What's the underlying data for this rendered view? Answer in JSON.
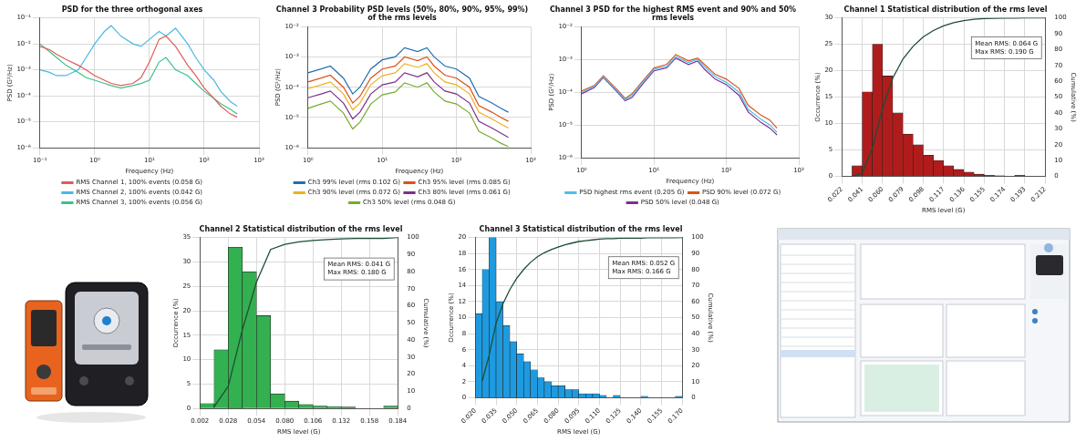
{
  "chart_data": [
    {
      "type": "line",
      "title": "PSD for the three orthogonal axes",
      "x_label": "Frequency (Hz)",
      "y_label": "PSD (G²/Hz)",
      "log": true,
      "grid": true,
      "legend": "bottom",
      "xlim": [
        0.1,
        1000
      ],
      "ylim": [
        1e-06,
        0.1
      ],
      "xticks": [
        {
          "value": 0.1,
          "label": "10⁻¹"
        },
        {
          "value": 1,
          "label": "10⁰"
        },
        {
          "value": 10,
          "label": "10¹"
        },
        {
          "value": 100,
          "label": "10²"
        },
        {
          "value": 1000,
          "label": "10³"
        }
      ],
      "yticks": [
        {
          "value": 1e-06,
          "label": "10⁻⁶"
        },
        {
          "value": 1e-05,
          "label": "10⁻⁵"
        },
        {
          "value": 0.0001,
          "label": "10⁻⁴"
        },
        {
          "value": 0.001,
          "label": "10⁻³"
        },
        {
          "value": 0.01,
          "label": "10⁻²"
        },
        {
          "value": 0.1,
          "label": "10⁻¹"
        }
      ],
      "x": [
        0.1,
        0.15,
        0.2,
        0.3,
        0.5,
        0.7,
        1,
        1.5,
        2,
        3,
        5,
        7,
        10,
        15,
        20,
        30,
        50,
        70,
        100,
        150,
        200,
        300,
        400
      ],
      "series": [
        {
          "name": "RMS Channel 1, 100% events (0.058 G)",
          "color": "#e05a5a",
          "values": [
            0.008,
            0.006,
            0.004,
            0.0025,
            0.0015,
            0.001,
            0.0006,
            0.0004,
            0.0003,
            0.00025,
            0.0003,
            0.0005,
            0.002,
            0.015,
            0.02,
            0.008,
            0.0015,
            0.0006,
            0.0002,
            8e-05,
            4e-05,
            2e-05,
            1.5e-05
          ]
        },
        {
          "name": "RMS Channel 2, 100% events (0.042 G)",
          "color": "#4ab8e8",
          "values": [
            0.001,
            0.0008,
            0.0006,
            0.0006,
            0.001,
            0.003,
            0.01,
            0.03,
            0.05,
            0.02,
            0.01,
            0.008,
            0.015,
            0.03,
            0.02,
            0.04,
            0.01,
            0.003,
            0.001,
            0.0004,
            0.00015,
            6e-05,
            4e-05
          ]
        },
        {
          "name": "RMS Channel 3, 100% events (0.056 G)",
          "color": "#3cc08a",
          "values": [
            0.01,
            0.005,
            0.003,
            0.0015,
            0.0008,
            0.0005,
            0.0004,
            0.0003,
            0.00025,
            0.0002,
            0.00025,
            0.0003,
            0.0004,
            0.002,
            0.003,
            0.001,
            0.0006,
            0.0003,
            0.00015,
            8e-05,
            5e-05,
            3e-05,
            2e-05
          ]
        }
      ]
    },
    {
      "type": "line",
      "title": "Channel 3 Probability PSD levels (50%, 80%, 90%, 95%, 99%) of the rms levels",
      "x_label": "Frequency (Hz)",
      "y_label": "PSD (G²/Hz)",
      "log": true,
      "grid": true,
      "legend": "bottom",
      "xlim": [
        1,
        1000
      ],
      "ylim": [
        1e-06,
        0.01
      ],
      "xticks": [
        {
          "value": 1,
          "label": "10⁰"
        },
        {
          "value": 10,
          "label": "10¹"
        },
        {
          "value": 100,
          "label": "10²"
        },
        {
          "value": 1000,
          "label": "10³"
        }
      ],
      "yticks": [
        {
          "value": 1e-06,
          "label": "10⁻⁶"
        },
        {
          "value": 1e-05,
          "label": "10⁻⁵"
        },
        {
          "value": 0.0001,
          "label": "10⁻⁴"
        },
        {
          "value": 0.001,
          "label": "10⁻³"
        },
        {
          "value": 0.01,
          "label": "10⁻²"
        }
      ],
      "x": [
        1,
        1.5,
        2,
        3,
        4,
        5,
        7,
        10,
        15,
        20,
        30,
        40,
        50,
        70,
        100,
        150,
        200,
        300,
        400,
        500
      ],
      "series": [
        {
          "name": "Ch3 99% level (rms 0.102 G)",
          "color": "#1f6fb5",
          "values": [
            0.0003,
            0.0004,
            0.0005,
            0.0002,
            6e-05,
            0.0001,
            0.0004,
            0.0008,
            0.001,
            0.002,
            0.0015,
            0.002,
            0.001,
            0.0005,
            0.0004,
            0.0002,
            5e-05,
            3e-05,
            2e-05,
            1.5e-05
          ]
        },
        {
          "name": "Ch3 95% level (rms 0.085 G)",
          "color": "#d95319",
          "values": [
            0.00015,
            0.0002,
            0.00025,
            0.0001,
            3e-05,
            5e-05,
            0.0002,
            0.0004,
            0.0005,
            0.001,
            0.00075,
            0.001,
            0.0005,
            0.00025,
            0.0002,
            0.0001,
            2.5e-05,
            1.5e-05,
            1e-05,
            7.5e-06
          ]
        },
        {
          "name": "Ch3 90% level (rms 0.072 G)",
          "color": "#edb120",
          "values": [
            9e-05,
            0.00012,
            0.00015,
            6e-05,
            1.8e-05,
            3e-05,
            0.00012,
            0.00024,
            0.0003,
            0.0006,
            0.00045,
            0.0006,
            0.0003,
            0.00015,
            0.00012,
            6e-05,
            1.5e-05,
            9e-06,
            6e-06,
            4.5e-06
          ]
        },
        {
          "name": "Ch3 80% level (rms 0.061 G)",
          "color": "#7e2f8e",
          "values": [
            4.5e-05,
            6e-05,
            7.5e-05,
            3e-05,
            9e-06,
            1.5e-05,
            6e-05,
            0.00012,
            0.00015,
            0.0003,
            0.00022,
            0.0003,
            0.00015,
            7.5e-05,
            6e-05,
            3e-05,
            7.5e-06,
            4.5e-06,
            3e-06,
            2.2e-06
          ]
        },
        {
          "name": "Ch3 50% level (rms 0.048 G)",
          "color": "#77ac30",
          "values": [
            2e-05,
            2.8e-05,
            3.5e-05,
            1.4e-05,
            4.2e-06,
            7e-06,
            2.8e-05,
            5.6e-05,
            7e-05,
            0.00014,
            0.0001,
            0.00014,
            7e-05,
            3.5e-05,
            2.8e-05,
            1.4e-05,
            3.5e-06,
            2.1e-06,
            1.4e-06,
            1.1e-06
          ]
        }
      ]
    },
    {
      "type": "line",
      "title": "Channel 3 PSD for the highest RMS event and 90% and 50% rms levels",
      "x_label": "Frequency (Hz)",
      "y_label": "PSD (G²/Hz)",
      "log": true,
      "grid": true,
      "legend": "bottom",
      "xlim": [
        1,
        1000
      ],
      "ylim": [
        1e-06,
        0.01
      ],
      "xticks": [
        {
          "value": 1,
          "label": "10⁰"
        },
        {
          "value": 10,
          "label": "10¹"
        },
        {
          "value": 100,
          "label": "10²"
        },
        {
          "value": 1000,
          "label": "10³"
        }
      ],
      "yticks": [
        {
          "value": 1e-06,
          "label": "10⁻⁶"
        },
        {
          "value": 1e-05,
          "label": "10⁻⁵"
        },
        {
          "value": 0.0001,
          "label": "10⁻⁴"
        },
        {
          "value": 0.001,
          "label": "10⁻³"
        },
        {
          "value": 0.01,
          "label": "10⁻²"
        }
      ],
      "x": [
        1,
        1.5,
        2,
        3,
        4,
        5,
        7,
        10,
        15,
        20,
        30,
        40,
        50,
        70,
        100,
        150,
        200,
        300,
        400,
        500
      ],
      "series": [
        {
          "name": "PSD highest rms event (0.205 G)",
          "color": "#4dbeee",
          "values": [
            0.0001,
            0.00015,
            0.0003,
            0.00012,
            6e-05,
            8e-05,
            0.0002,
            0.0005,
            0.0006,
            0.0012,
            0.0008,
            0.001,
            0.0006,
            0.0003,
            0.0002,
            0.0001,
            3e-05,
            1.5e-05,
            1e-05,
            6e-06
          ]
        },
        {
          "name": "PSD 90% level (0.072 G)",
          "color": "#d95319",
          "values": [
            0.00011,
            0.00016,
            0.00032,
            0.00013,
            6.5e-05,
            9e-05,
            0.00022,
            0.00055,
            0.0007,
            0.0014,
            0.0009,
            0.0011,
            0.0007,
            0.00035,
            0.00025,
            0.00013,
            4e-05,
            2e-05,
            1.4e-05,
            8e-06
          ]
        },
        {
          "name": "PSD 50% level (0.048 G)",
          "color": "#7e2f8e",
          "values": [
            9e-05,
            0.00014,
            0.00028,
            0.00011,
            5.5e-05,
            7e-05,
            0.00018,
            0.00045,
            0.00055,
            0.0011,
            0.0007,
            0.0009,
            0.0005,
            0.00025,
            0.00017,
            8e-05,
            2.5e-05,
            1.2e-05,
            8e-06,
            5e-06
          ]
        }
      ]
    },
    {
      "type": "histogram",
      "title": "Channel 1 Statistical distribution of the rms level",
      "x_label": "RMS level (G)",
      "y_label": "Occurrence (%)",
      "y2_label": "Cumulative (%)",
      "grid": true,
      "xlim": [
        0.022,
        0.212
      ],
      "ylim": [
        0,
        30
      ],
      "y2lim": [
        0,
        100
      ],
      "xticks": [
        0.022,
        0.041,
        {
          "value": 0.06,
          "label": "0.060"
        },
        0.079,
        0.098,
        0.117,
        0.136,
        0.155,
        0.174,
        0.193,
        0.212
      ],
      "yticks": [
        0,
        5,
        10,
        15,
        20,
        25,
        30
      ],
      "y2ticks": [
        0,
        10,
        20,
        30,
        40,
        50,
        60,
        70,
        80,
        90,
        100
      ],
      "bins": [
        0.022,
        0.0315,
        0.041,
        0.0505,
        0.06,
        0.0695,
        0.079,
        0.0885,
        0.098,
        0.1075,
        0.117,
        0.1265,
        0.136,
        0.1455,
        0.155,
        0.1645,
        0.174,
        0.1835,
        0.193,
        0.2025,
        0.212
      ],
      "series": [
        {
          "type": "bar",
          "color": "#b01c1c",
          "values": [
            0,
            2,
            16,
            25,
            19,
            12,
            8,
            6,
            4,
            3,
            2,
            1.3,
            0.8,
            0.4,
            0.2,
            0.1,
            0,
            0.2,
            0,
            0
          ]
        },
        {
          "type": "line",
          "axis": "y2",
          "color": "#1d4d33",
          "values": [
            0,
            2,
            18,
            43,
            62,
            74,
            82,
            88,
            92,
            95,
            97,
            98.3,
            99.1,
            99.5,
            99.7,
            99.8,
            99.8,
            100,
            100,
            100
          ]
        }
      ],
      "annotations": [
        "Mean RMS: 0.064 G",
        "Max RMS: 0.190 G"
      ]
    },
    {
      "type": "histogram",
      "title": "Channel 2 Statistical distribution of the rms level",
      "x_label": "RMS level (G)",
      "y_label": "Occurrence (%)",
      "y2_label": "Cumulative (%)",
      "grid": true,
      "xlim": [
        0.002,
        0.184
      ],
      "ylim": [
        0,
        35
      ],
      "y2lim": [
        0,
        100
      ],
      "xticks": [
        0.002,
        0.028,
        0.054,
        {
          "value": 0.08,
          "label": "0.080"
        },
        0.106,
        0.132,
        0.158,
        0.184
      ],
      "yticks": [
        0,
        5,
        10,
        15,
        20,
        25,
        30,
        35
      ],
      "y2ticks": [
        0,
        10,
        20,
        30,
        40,
        50,
        60,
        70,
        80,
        90,
        100
      ],
      "bins": [
        0.002,
        0.015,
        0.028,
        0.041,
        0.054,
        0.067,
        0.08,
        0.093,
        0.106,
        0.119,
        0.132,
        0.145,
        0.158,
        0.171,
        0.184
      ],
      "series": [
        {
          "type": "bar",
          "color": "#33b050",
          "values": [
            1,
            12,
            33,
            28,
            19,
            3,
            1.5,
            0.8,
            0.5,
            0.4,
            0.3,
            0,
            0,
            0.5
          ]
        },
        {
          "type": "line",
          "axis": "y2",
          "color": "#1d4d33",
          "values": [
            1,
            13,
            46,
            74,
            93,
            96,
            97.5,
            98.3,
            98.8,
            99.2,
            99.5,
            99.5,
            99.5,
            100
          ]
        }
      ],
      "annotations": [
        "Mean RMS: 0.041 G",
        "Max RMS: 0.180 G"
      ]
    },
    {
      "type": "histogram",
      "title": "Channel 3 Statistical distribution of the rms level",
      "x_label": "RMS level (G)",
      "y_label": "Occurrence (%)",
      "y2_label": "Cumulative (%)",
      "grid": true,
      "xlim": [
        0.02,
        0.17
      ],
      "ylim": [
        0,
        20
      ],
      "y2lim": [
        0,
        100
      ],
      "xticks": [
        {
          "value": 0.02,
          "label": "0.020"
        },
        0.035,
        {
          "value": 0.05,
          "label": "0.050"
        },
        0.065,
        {
          "value": 0.08,
          "label": "0.080"
        },
        0.095,
        {
          "value": 0.11,
          "label": "0.110"
        },
        0.125,
        {
          "value": 0.14,
          "label": "0.140"
        },
        0.155,
        {
          "value": 0.17,
          "label": "0.170"
        }
      ],
      "yticks": [
        0,
        2,
        4,
        6,
        8,
        10,
        12,
        14,
        16,
        18,
        20
      ],
      "y2ticks": [
        0,
        10,
        20,
        30,
        40,
        50,
        60,
        70,
        80,
        90,
        100
      ],
      "bins": [
        0.02,
        0.025,
        0.03,
        0.035,
        0.04,
        0.045,
        0.05,
        0.055,
        0.06,
        0.065,
        0.07,
        0.075,
        0.08,
        0.085,
        0.09,
        0.095,
        0.1,
        0.105,
        0.11,
        0.115,
        0.12,
        0.125,
        0.13,
        0.135,
        0.14,
        0.145,
        0.15,
        0.155,
        0.16,
        0.165,
        0.17
      ],
      "series": [
        {
          "type": "bar",
          "color": "#1e9be0",
          "values": [
            10.5,
            16,
            20,
            12,
            9,
            7,
            5.5,
            4.5,
            3.5,
            2.5,
            2,
            1.5,
            1.5,
            1,
            1,
            0.5,
            0.5,
            0.5,
            0.3,
            0,
            0.3,
            0,
            0,
            0,
            0.2,
            0,
            0,
            0,
            0,
            0.2
          ]
        },
        {
          "type": "line",
          "axis": "y2",
          "color": "#1d4d33",
          "values": [
            10.5,
            26.5,
            46.5,
            58.5,
            67.5,
            74.5,
            80,
            84.5,
            88,
            90.5,
            92.5,
            94,
            95.5,
            96.5,
            97.5,
            98,
            98.5,
            99,
            99.3,
            99.3,
            99.6,
            99.6,
            99.6,
            99.6,
            99.8,
            99.8,
            99.8,
            99.8,
            99.8,
            100
          ]
        }
      ],
      "annotations": [
        "Mean RMS: 0.052 G",
        "Max RMS: 0.166 G"
      ]
    }
  ]
}
